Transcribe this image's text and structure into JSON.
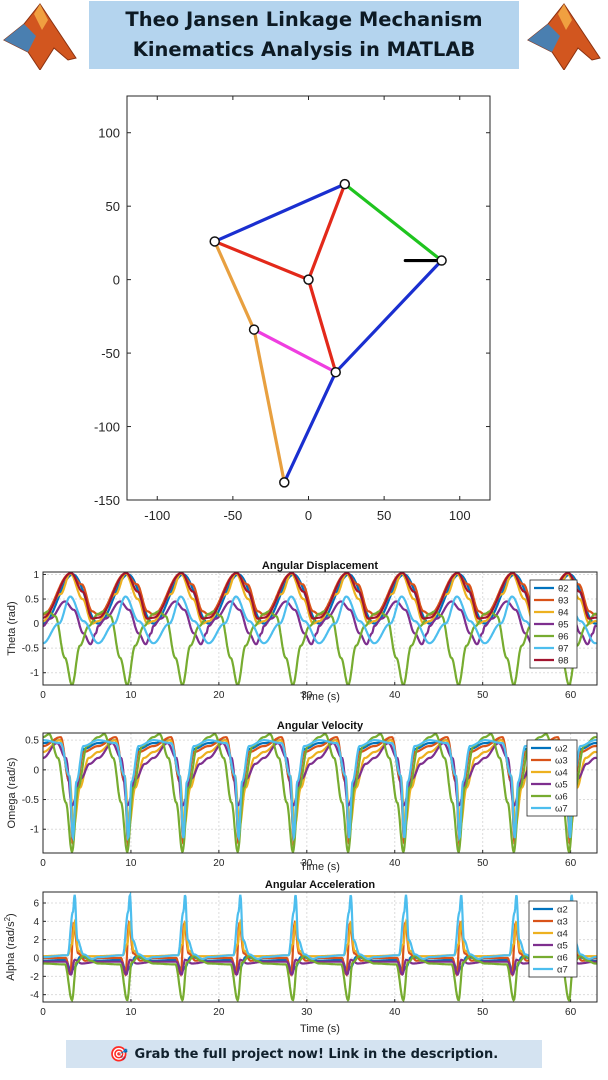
{
  "header": {
    "title_line1": "Theo Jansen Linkage Mechanism",
    "title_line2": "Kinematics Analysis in MATLAB",
    "logo_icon": "matlab-membrane-logo"
  },
  "footer": {
    "icon": "target-arrow-icon",
    "icon_glyph": "🎯",
    "text": "Grab the full project now! Link in the description."
  },
  "chart_data": [
    {
      "type": "line",
      "title": "",
      "xlabel": "",
      "ylabel": "",
      "xlim": [
        -120,
        120
      ],
      "ylim": [
        -150,
        125
      ],
      "x_ticks": [
        -100,
        -50,
        0,
        50,
        100
      ],
      "y_ticks": [
        100,
        50,
        0,
        -50,
        -100,
        -150
      ],
      "joints": [
        {
          "x": -62,
          "y": 26
        },
        {
          "x": 24,
          "y": 65
        },
        {
          "x": 0,
          "y": 0
        },
        {
          "x": 88,
          "y": 13
        },
        {
          "x": -36,
          "y": -34
        },
        {
          "x": 18,
          "y": -63
        },
        {
          "x": -16,
          "y": -138
        }
      ],
      "links": [
        {
          "from": [
            -62,
            26
          ],
          "to": [
            24,
            65
          ],
          "color": "#1a2fd0"
        },
        {
          "from": [
            24,
            65
          ],
          "to": [
            88,
            13
          ],
          "color": "#1fc41f"
        },
        {
          "from": [
            24,
            65
          ],
          "to": [
            0,
            0
          ],
          "color": "#e3291a"
        },
        {
          "from": [
            -62,
            26
          ],
          "to": [
            0,
            0
          ],
          "color": "#e3291a"
        },
        {
          "from": [
            0,
            0
          ],
          "to": [
            18,
            -63
          ],
          "color": "#e3291a"
        },
        {
          "from": [
            -62,
            26
          ],
          "to": [
            -36,
            -34
          ],
          "color": "#e8a040"
        },
        {
          "from": [
            -36,
            -34
          ],
          "to": [
            18,
            -63
          ],
          "color": "#ef3ee0"
        },
        {
          "from": [
            -36,
            -34
          ],
          "to": [
            -16,
            -138
          ],
          "color": "#e8a040"
        },
        {
          "from": [
            18,
            -63
          ],
          "to": [
            -16,
            -138
          ],
          "color": "#1a2fd0"
        },
        {
          "from": [
            88,
            13
          ],
          "to": [
            18,
            -63
          ],
          "color": "#1a2fd0"
        },
        {
          "from": [
            64,
            13
          ],
          "to": [
            88,
            13
          ],
          "color": "#000000"
        }
      ]
    },
    {
      "type": "line",
      "title": "Angular Displacement",
      "xlabel": "Time (s)",
      "ylabel": "Theta (rad)",
      "xlim": [
        0,
        63
      ],
      "ylim": [
        -1.25,
        1.05
      ],
      "x_ticks": [
        0,
        10,
        20,
        30,
        40,
        50,
        60
      ],
      "y_ticks": [
        1,
        0.5,
        0,
        -0.5,
        -1
      ],
      "period": 6.28,
      "series": [
        {
          "name": "θ2",
          "color": "#0072bd",
          "keyframes": [
            [
              0,
              0
            ],
            [
              3.4,
              1
            ],
            [
              6.3,
              0
            ]
          ]
        },
        {
          "name": "θ3",
          "color": "#d95319",
          "keyframes": [
            [
              0,
              0.18
            ],
            [
              3.1,
              1.02
            ],
            [
              4.4,
              0.8
            ],
            [
              5.6,
              0.25
            ],
            [
              6.28,
              0.18
            ]
          ]
        },
        {
          "name": "θ4",
          "color": "#edb120",
          "keyframes": [
            [
              0,
              0.05
            ],
            [
              2,
              0.6
            ],
            [
              3.1,
              1.02
            ],
            [
              4.5,
              0.5
            ],
            [
              5.6,
              0
            ],
            [
              6.28,
              0.05
            ]
          ]
        },
        {
          "name": "θ5",
          "color": "#7e2f8e",
          "keyframes": [
            [
              0,
              -0.05
            ],
            [
              0.8,
              0.1
            ],
            [
              2.5,
              0.45
            ],
            [
              3.5,
              0.28
            ],
            [
              4.6,
              -0.2
            ],
            [
              5.4,
              -0.42
            ],
            [
              6.0,
              -0.2
            ],
            [
              6.28,
              -0.05
            ]
          ]
        },
        {
          "name": "θ6",
          "color": "#77ac30",
          "keyframes": [
            [
              0,
              0.2
            ],
            [
              0.6,
              0.25
            ],
            [
              1.4,
              0.15
            ],
            [
              2.5,
              -0.7
            ],
            [
              3.3,
              -1.25
            ],
            [
              4.2,
              -0.45
            ],
            [
              5.2,
              -0.05
            ],
            [
              6.28,
              0.2
            ]
          ]
        },
        {
          "name": "θ7",
          "color": "#4dbeee",
          "keyframes": [
            [
              0,
              -0.4
            ],
            [
              1.8,
              0
            ],
            [
              3.1,
              0.55
            ],
            [
              4.6,
              0.05
            ],
            [
              6.28,
              -0.4
            ]
          ]
        },
        {
          "name": "θ8",
          "color": "#a2142f",
          "keyframes": [
            [
              0,
              0.12
            ],
            [
              3.2,
              1.03
            ],
            [
              4.5,
              0.65
            ],
            [
              5.6,
              0.1
            ],
            [
              6.28,
              0.12
            ]
          ]
        }
      ]
    },
    {
      "type": "line",
      "title": "Angular Velocity",
      "xlabel": "Time (s)",
      "ylabel": "Omega (rad/s)",
      "xlim": [
        0,
        63
      ],
      "ylim": [
        -1.4,
        0.62
      ],
      "x_ticks": [
        0,
        10,
        20,
        30,
        40,
        50,
        60
      ],
      "y_ticks": [
        0.5,
        0,
        -0.5,
        -1
      ],
      "period": 6.28,
      "series": [
        {
          "name": "ω2",
          "color": "#0072bd",
          "keyframes": [
            [
              0,
              0.45
            ],
            [
              2,
              0.5
            ],
            [
              3.0,
              -0.2
            ],
            [
              3.4,
              -1.2
            ],
            [
              3.8,
              -0.3
            ],
            [
              4.6,
              0.35
            ],
            [
              6.28,
              0.45
            ]
          ]
        },
        {
          "name": "ω3",
          "color": "#d95319",
          "keyframes": [
            [
              0,
              0.4
            ],
            [
              2,
              0.55
            ],
            [
              3.0,
              -0.2
            ],
            [
              3.4,
              -1.25
            ],
            [
              3.8,
              -0.3
            ],
            [
              4.6,
              0.3
            ],
            [
              6.28,
              0.4
            ]
          ]
        },
        {
          "name": "ω4",
          "color": "#edb120",
          "keyframes": [
            [
              0,
              0.3
            ],
            [
              1.9,
              0.5
            ],
            [
              3.0,
              -0.1
            ],
            [
              3.5,
              -0.95
            ],
            [
              4.2,
              -0.3
            ],
            [
              5.2,
              0.2
            ],
            [
              6.28,
              0.3
            ]
          ]
        },
        {
          "name": "ω5",
          "color": "#7e2f8e",
          "keyframes": [
            [
              0,
              0.2
            ],
            [
              1.6,
              0.45
            ],
            [
              2.6,
              0.2
            ],
            [
              3.3,
              -0.6
            ],
            [
              4.3,
              -0.15
            ],
            [
              5.3,
              0.1
            ],
            [
              6.28,
              0.2
            ]
          ]
        },
        {
          "name": "ω6",
          "color": "#77ac30",
          "keyframes": [
            [
              0,
              0.55
            ],
            [
              0.7,
              0.6
            ],
            [
              1.7,
              0.2
            ],
            [
              2.6,
              -0.55
            ],
            [
              3.3,
              -1.38
            ],
            [
              4.0,
              -0.3
            ],
            [
              5.0,
              0.4
            ],
            [
              6.28,
              0.55
            ]
          ]
        },
        {
          "name": "ω7",
          "color": "#4dbeee",
          "keyframes": [
            [
              0,
              0.5
            ],
            [
              2,
              0.45
            ],
            [
              3.0,
              -0.1
            ],
            [
              3.4,
              -1.15
            ],
            [
              3.8,
              -0.2
            ],
            [
              4.6,
              0.4
            ],
            [
              6.28,
              0.5
            ]
          ]
        }
      ]
    },
    {
      "type": "line",
      "title": "Angular Acceleration",
      "xlabel": "Time (s)",
      "ylabel": "Alpha (rad/s²)",
      "ylabel_main": "Alpha (rad/s",
      "ylabel_sup": "2",
      "ylabel_end": ")",
      "xlim": [
        0,
        63
      ],
      "ylim": [
        -4.8,
        7.2
      ],
      "x_ticks": [
        0,
        10,
        20,
        30,
        40,
        50,
        60
      ],
      "y_ticks": [
        6,
        4,
        2,
        0,
        -2,
        -4
      ],
      "period": 6.28,
      "series": [
        {
          "name": "α2",
          "color": "#0072bd",
          "keyframes": [
            [
              0,
              -0.3
            ],
            [
              2.6,
              -0.2
            ],
            [
              3.2,
              -1.5
            ],
            [
              3.6,
              -1.0
            ],
            [
              4.2,
              0.1
            ],
            [
              6.28,
              -0.3
            ]
          ]
        },
        {
          "name": "α3",
          "color": "#d95319",
          "keyframes": [
            [
              0,
              0
            ],
            [
              2.6,
              0
            ],
            [
              3.1,
              -1.8
            ],
            [
              3.5,
              3.8
            ],
            [
              4.0,
              0.5
            ],
            [
              4.8,
              -0.3
            ],
            [
              6.28,
              0
            ]
          ]
        },
        {
          "name": "α4",
          "color": "#edb120",
          "keyframes": [
            [
              0,
              0.2
            ],
            [
              2.8,
              0.3
            ],
            [
              3.3,
              1.5
            ],
            [
              3.6,
              3.9
            ],
            [
              4.0,
              0.8
            ],
            [
              4.8,
              0.2
            ],
            [
              6.28,
              0.2
            ]
          ]
        },
        {
          "name": "α5",
          "color": "#7e2f8e",
          "keyframes": [
            [
              0,
              -0.4
            ],
            [
              2.6,
              -0.4
            ],
            [
              3.2,
              -1.8
            ],
            [
              3.6,
              -0.2
            ],
            [
              4.4,
              -0.6
            ],
            [
              6.28,
              -0.4
            ]
          ]
        },
        {
          "name": "α6",
          "color": "#77ac30",
          "keyframes": [
            [
              0,
              -0.6
            ],
            [
              2.5,
              -0.7
            ],
            [
              3.3,
              -4.6
            ],
            [
              3.8,
              -0.5
            ],
            [
              4.6,
              0.2
            ],
            [
              5.4,
              -0.3
            ],
            [
              6.28,
              -0.6
            ]
          ]
        },
        {
          "name": "α7",
          "color": "#4dbeee",
          "keyframes": [
            [
              0,
              0.1
            ],
            [
              2.8,
              0.3
            ],
            [
              3.4,
              5.0
            ],
            [
              3.6,
              6.9
            ],
            [
              3.9,
              2.0
            ],
            [
              4.6,
              0.4
            ],
            [
              5.6,
              -0.1
            ],
            [
              6.28,
              0.1
            ]
          ]
        }
      ]
    }
  ]
}
